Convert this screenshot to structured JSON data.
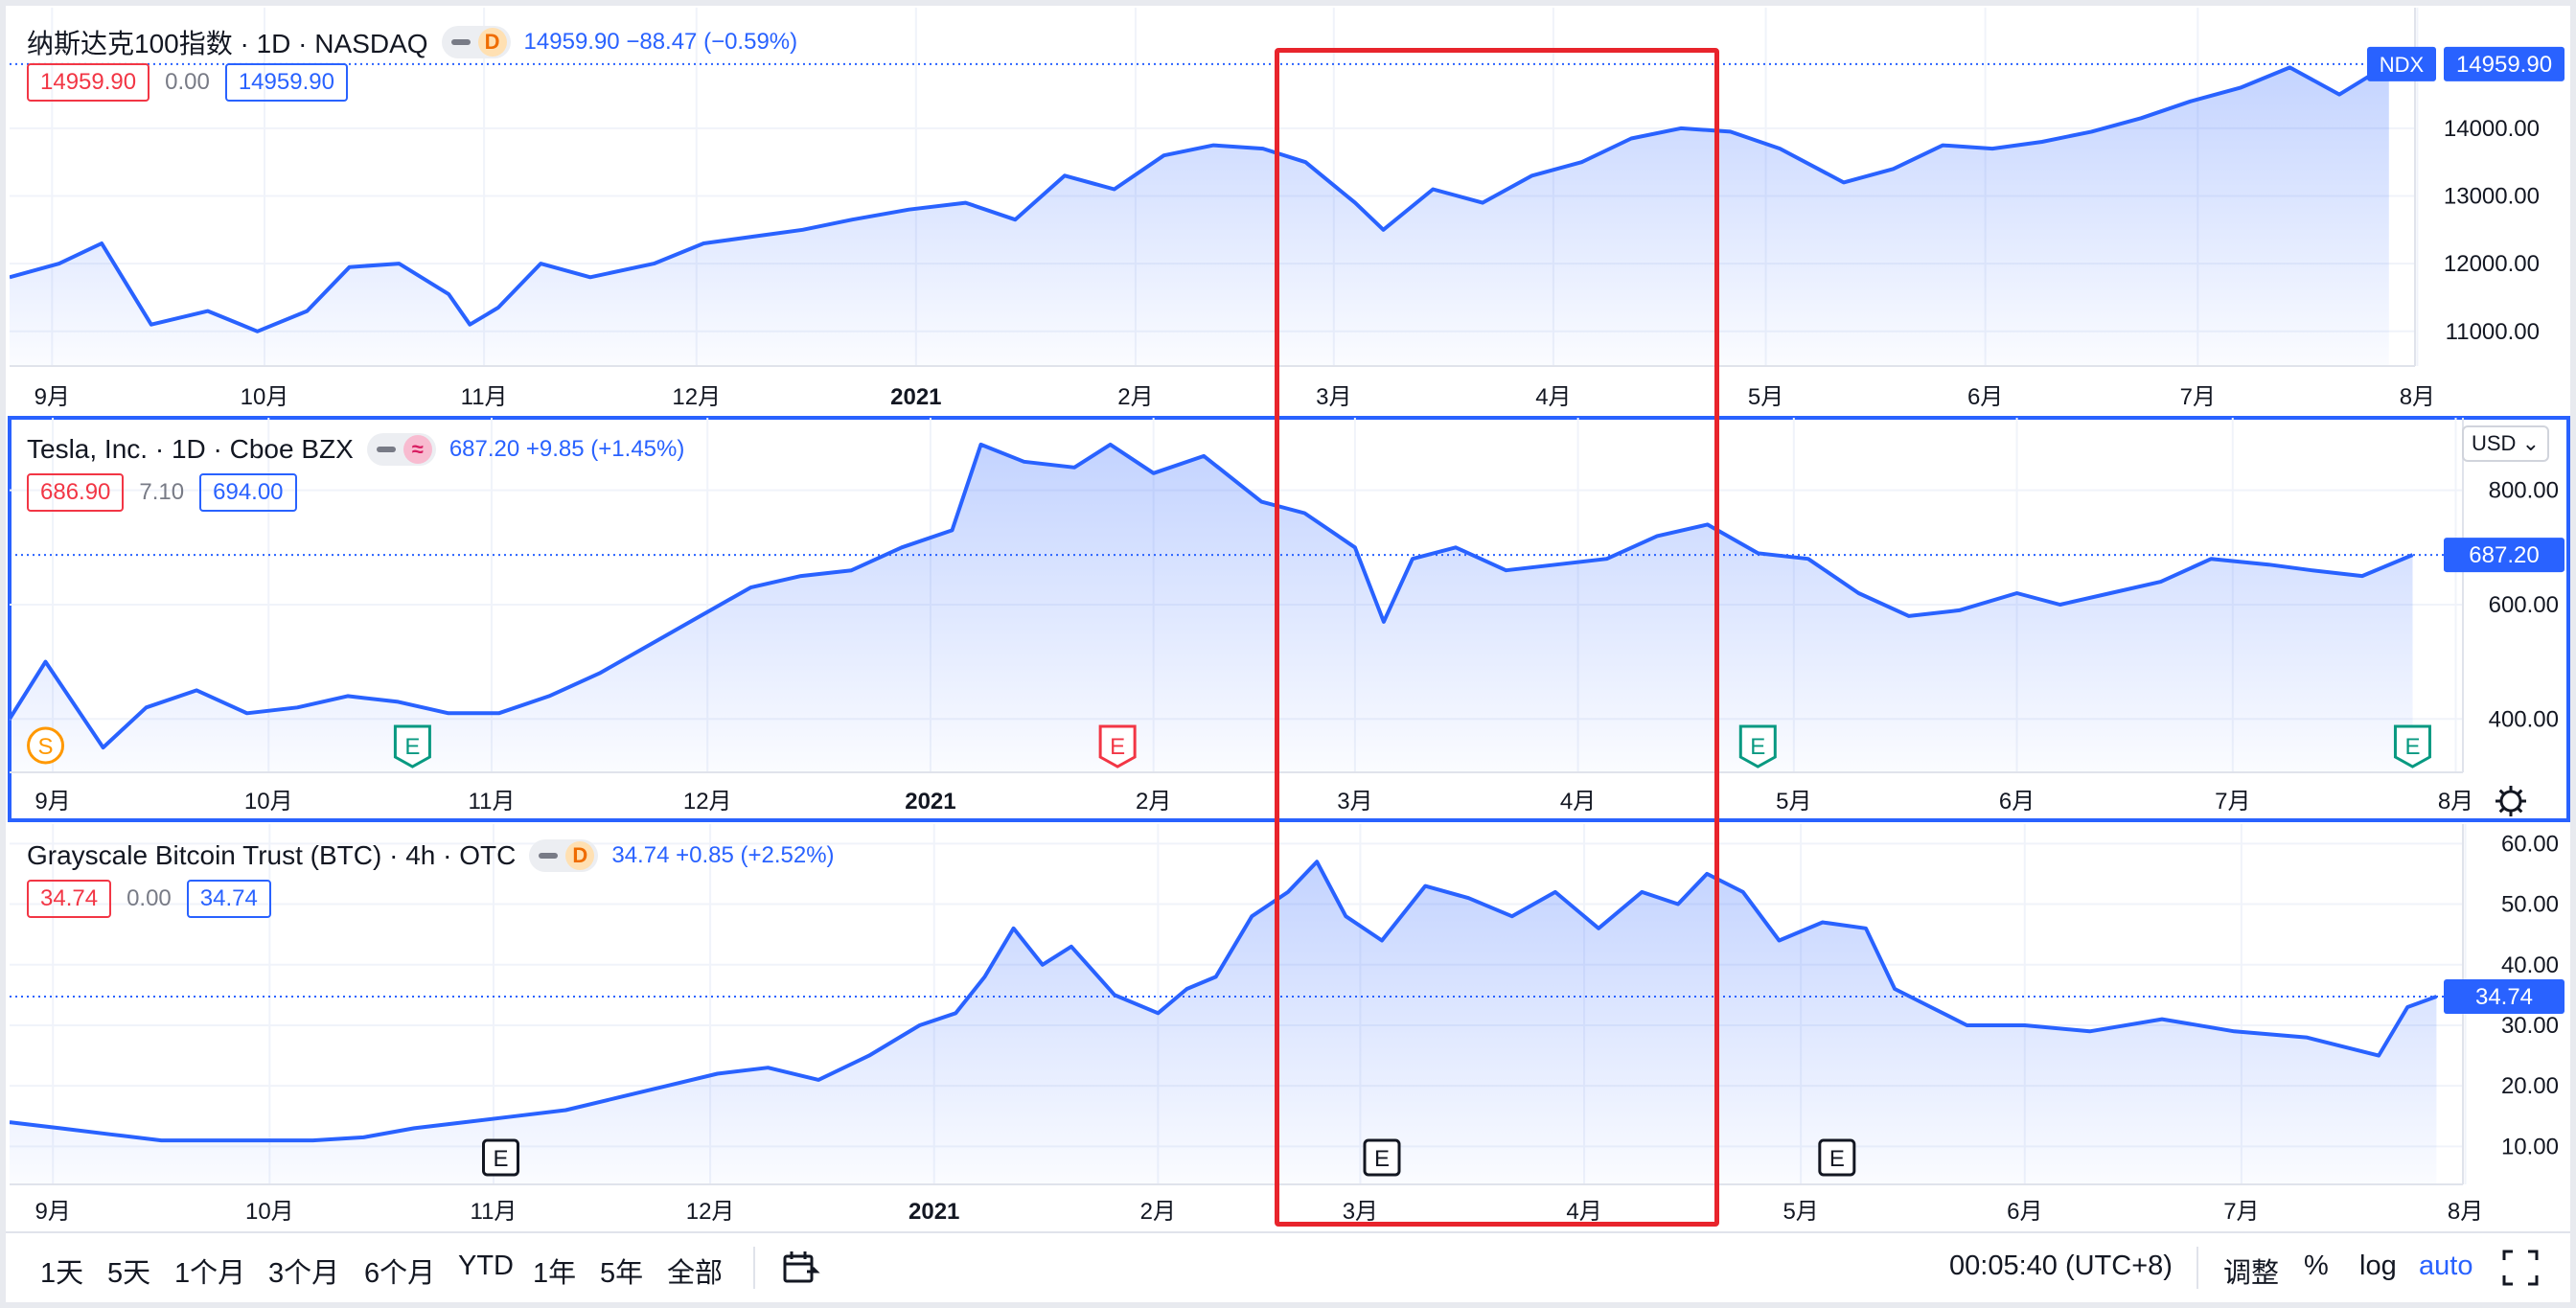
{
  "chart_data": [
    {
      "type": "area",
      "title": "纳斯达克100指数",
      "interval": "1D",
      "exchange": "NASDAQ",
      "status_badge": "D",
      "quote": {
        "last": "14959.90",
        "change": "−88.47",
        "change_pct": "(−0.59%)"
      },
      "ohlc_boxes": {
        "left": "14959.90",
        "mid": "0.00",
        "right": "14959.90"
      },
      "price_label": {
        "symbol": "NDX",
        "value": "14959.90"
      },
      "x_ticks": [
        "9月",
        "10月",
        "11月",
        "12月",
        "2021",
        "2月",
        "3月",
        "4月",
        "5月",
        "6月",
        "7月",
        "8月"
      ],
      "y_ticks": [
        "14000.00",
        "13000.00",
        "12000.00",
        "11000.00"
      ],
      "ylim": [
        10600,
        15500
      ],
      "x": [
        "2020-08-26",
        "2020-09-02",
        "2020-09-08",
        "2020-09-15",
        "2020-09-23",
        "2020-09-30",
        "2020-10-07",
        "2020-10-13",
        "2020-10-20",
        "2020-10-27",
        "2020-10-30",
        "2020-11-03",
        "2020-11-09",
        "2020-11-16",
        "2020-11-25",
        "2020-12-02",
        "2020-12-09",
        "2020-12-16",
        "2020-12-23",
        "2020-12-31",
        "2021-01-08",
        "2021-01-15",
        "2021-01-22",
        "2021-01-29",
        "2021-02-05",
        "2021-02-12",
        "2021-02-19",
        "2021-02-25",
        "2021-03-04",
        "2021-03-08",
        "2021-03-15",
        "2021-03-22",
        "2021-03-29",
        "2021-04-05",
        "2021-04-12",
        "2021-04-19",
        "2021-04-26",
        "2021-05-03",
        "2021-05-12",
        "2021-05-19",
        "2021-05-26",
        "2021-06-02",
        "2021-06-09",
        "2021-06-16",
        "2021-06-23",
        "2021-06-30",
        "2021-07-07",
        "2021-07-14",
        "2021-07-21",
        "2021-07-28"
      ],
      "values": [
        11800,
        12000,
        12300,
        11100,
        11300,
        11000,
        11300,
        11950,
        12000,
        11550,
        11100,
        11350,
        12000,
        11800,
        12000,
        12300,
        12400,
        12500,
        12650,
        12800,
        12900,
        12650,
        13300,
        13100,
        13600,
        13750,
        13700,
        13500,
        12900,
        12500,
        13100,
        12900,
        13300,
        13500,
        13850,
        14000,
        13950,
        13700,
        13200,
        13400,
        13750,
        13700,
        13800,
        13950,
        14150,
        14400,
        14600,
        14900,
        14500,
        14950
      ]
    },
    {
      "type": "area",
      "title": "Tesla, Inc.",
      "interval": "1D",
      "exchange": "Cboe BZX",
      "quote": {
        "last": "687.20",
        "change": "+9.85",
        "change_pct": "(+1.45%)"
      },
      "ohlc_boxes": {
        "left": "686.90",
        "mid": "7.10",
        "right": "694.00"
      },
      "price_label": {
        "value": "687.20"
      },
      "currency_button": "USD",
      "events": [
        {
          "letter": "S",
          "date": "2020-08-31",
          "color": "#ff9800"
        },
        {
          "letter": "E",
          "date": "2020-10-21",
          "color": "#089981"
        },
        {
          "letter": "E",
          "date": "2021-01-27",
          "color": "#f23645"
        },
        {
          "letter": "E",
          "date": "2021-04-26",
          "color": "#089981"
        },
        {
          "letter": "E",
          "date": "2021-07-26",
          "color": "#089981"
        }
      ],
      "x_ticks": [
        "9月",
        "10月",
        "11月",
        "12月",
        "2021",
        "2月",
        "3月",
        "4月",
        "5月",
        "6月",
        "7月",
        "8月"
      ],
      "y_ticks": [
        "800.00",
        "600.00",
        "400.00"
      ],
      "ylim": [
        320,
        900
      ],
      "x": [
        "2020-08-26",
        "2020-08-31",
        "2020-09-08",
        "2020-09-14",
        "2020-09-21",
        "2020-09-28",
        "2020-10-05",
        "2020-10-12",
        "2020-10-19",
        "2020-10-26",
        "2020-11-02",
        "2020-11-09",
        "2020-11-16",
        "2020-11-23",
        "2020-11-30",
        "2020-12-07",
        "2020-12-14",
        "2020-12-21",
        "2020-12-28",
        "2021-01-04",
        "2021-01-08",
        "2021-01-14",
        "2021-01-21",
        "2021-01-26",
        "2021-02-01",
        "2021-02-08",
        "2021-02-16",
        "2021-02-22",
        "2021-03-01",
        "2021-03-05",
        "2021-03-09",
        "2021-03-15",
        "2021-03-22",
        "2021-03-29",
        "2021-04-05",
        "2021-04-12",
        "2021-04-19",
        "2021-04-26",
        "2021-05-03",
        "2021-05-10",
        "2021-05-17",
        "2021-05-24",
        "2021-06-01",
        "2021-06-07",
        "2021-06-14",
        "2021-06-21",
        "2021-06-28",
        "2021-07-06",
        "2021-07-12",
        "2021-07-19",
        "2021-07-26"
      ],
      "values": [
        400,
        500,
        350,
        420,
        450,
        410,
        420,
        440,
        430,
        410,
        410,
        440,
        480,
        530,
        580,
        630,
        650,
        660,
        700,
        730,
        880,
        850,
        840,
        880,
        830,
        860,
        780,
        760,
        700,
        570,
        680,
        700,
        660,
        670,
        680,
        720,
        740,
        690,
        680,
        620,
        580,
        590,
        620,
        600,
        620,
        640,
        680,
        670,
        660,
        650,
        687
      ]
    },
    {
      "type": "area",
      "title": "Grayscale Bitcoin Trust (BTC)",
      "interval": "4h",
      "exchange": "OTC",
      "status_badge": "D",
      "quote": {
        "last": "34.74",
        "change": "+0.85",
        "change_pct": "(+2.52%)"
      },
      "ohlc_boxes": {
        "left": "34.74",
        "mid": "0.00",
        "right": "34.74"
      },
      "price_label": {
        "value": "34.74"
      },
      "events": [
        {
          "letter": "E",
          "date": "2020-11-02",
          "color": "#131722"
        },
        {
          "letter": "E",
          "date": "2021-03-04",
          "color": "#131722"
        },
        {
          "letter": "E",
          "date": "2021-05-06",
          "color": "#131722"
        }
      ],
      "x_ticks": [
        "9月",
        "10月",
        "11月",
        "12月",
        "2021",
        "2月",
        "3月",
        "4月",
        "5月",
        "6月",
        "7月",
        "8月"
      ],
      "y_ticks": [
        "60.00",
        "50.00",
        "40.00",
        "30.00",
        "20.00",
        "10.00"
      ],
      "ylim": [
        5,
        61
      ],
      "x": [
        "2020-08-26",
        "2020-09-02",
        "2020-09-09",
        "2020-09-16",
        "2020-09-23",
        "2020-09-30",
        "2020-10-07",
        "2020-10-14",
        "2020-10-21",
        "2020-10-28",
        "2020-11-04",
        "2020-11-11",
        "2020-11-18",
        "2020-11-25",
        "2020-12-02",
        "2020-12-09",
        "2020-12-16",
        "2020-12-23",
        "2020-12-30",
        "2021-01-04",
        "2021-01-08",
        "2021-01-12",
        "2021-01-16",
        "2021-01-20",
        "2021-01-26",
        "2021-02-01",
        "2021-02-05",
        "2021-02-09",
        "2021-02-14",
        "2021-02-19",
        "2021-02-23",
        "2021-02-27",
        "2021-03-04",
        "2021-03-10",
        "2021-03-16",
        "2021-03-22",
        "2021-03-28",
        "2021-04-03",
        "2021-04-09",
        "2021-04-14",
        "2021-04-18",
        "2021-04-23",
        "2021-04-28",
        "2021-05-04",
        "2021-05-10",
        "2021-05-14",
        "2021-05-19",
        "2021-05-24",
        "2021-06-01",
        "2021-06-10",
        "2021-06-20",
        "2021-06-30",
        "2021-07-10",
        "2021-07-20",
        "2021-07-24",
        "2021-07-28"
      ],
      "values": [
        14,
        13,
        12,
        11,
        11,
        11,
        11,
        11.5,
        13,
        14,
        15,
        16,
        18,
        20,
        22,
        23,
        21,
        25,
        30,
        32,
        38,
        46,
        40,
        43,
        35,
        32,
        36,
        38,
        48,
        52,
        57,
        48,
        44,
        53,
        51,
        48,
        52,
        46,
        52,
        50,
        55,
        52,
        44,
        47,
        46,
        36,
        33,
        30,
        30,
        29,
        31,
        29,
        28,
        25,
        33,
        34.74
      ]
    }
  ],
  "toolbar": {
    "ranges": [
      "1天",
      "5天",
      "1个月",
      "3个月",
      "6个月",
      "YTD",
      "1年",
      "5年",
      "全部"
    ],
    "time": "00:05:40 (UTC+8)",
    "adjust": "调整",
    "percent": "%",
    "log": "log",
    "auto": "auto"
  },
  "colors": {
    "line": "#2962ff",
    "up": "#2962ff",
    "down": "#f23645",
    "highlight_box": "#e8242c"
  }
}
